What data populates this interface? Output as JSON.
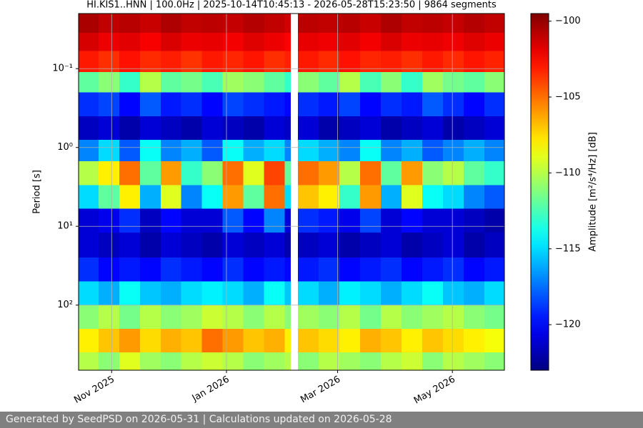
{
  "chart_data": {
    "type": "heatmap",
    "title": "HI.KIS1..HNN | 100.0Hz | 2025-10-14T10:45:13 - 2026-05-28T15:23:50 | 9864 segments",
    "y_label": "Period [s]",
    "colorbar_label": "Amplitude [m²/s⁴/Hz] [dB]",
    "footer": "Generated by SeedPSD on 2026-05-31 | Calculations updated on 2026-05-28",
    "x_edges": [
      "2025-10-14T10:45:13",
      "2025-10-25",
      "2025-11-05",
      "2025-11-16",
      "2025-11-27",
      "2025-12-08",
      "2025-12-19",
      "2025-12-30",
      "2026-01-10",
      "2026-01-21",
      "2026-02-01",
      "2026-02-04",
      "2026-02-08",
      "2026-02-19",
      "2026-03-02",
      "2026-03-13",
      "2026-03-24",
      "2026-04-04",
      "2026-04-15",
      "2026-04-26",
      "2026-05-07",
      "2026-05-18",
      "2026-05-28T15:23:50"
    ],
    "y_edges": [
      0.02,
      0.035,
      0.06,
      0.11,
      0.2,
      0.4,
      0.8,
      1.5,
      3,
      6,
      12,
      25,
      50,
      100,
      200,
      400,
      670
    ],
    "values": [
      [
        -100.5,
        -101,
        -100.8,
        -101.2,
        -100.6,
        -101,
        -100.9,
        -101.1,
        -100.7,
        -101,
        -101.3,
        null,
        -100.9,
        -101,
        -100.8,
        -101.2,
        -100.6,
        -101,
        -100.9,
        -101.1,
        -100.7,
        -101
      ],
      [
        -101.5,
        -102,
        -101.8,
        -102.3,
        -101.6,
        -102,
        -101.9,
        -102.2,
        -101.7,
        -102,
        -102.4,
        null,
        -101.9,
        -102.1,
        -101.8,
        -102.2,
        -101.6,
        -102,
        -101.9,
        -102.1,
        -101.7,
        -102
      ],
      [
        -103,
        -103.5,
        -102.8,
        -103.4,
        -103.1,
        -103.6,
        -103,
        -103.3,
        -102.9,
        -103.5,
        -103.2,
        null,
        -103,
        -103.4,
        -102.8,
        -103.3,
        -103.1,
        -103.5,
        -103,
        -103.4,
        -102.9,
        -103.2
      ],
      [
        -112,
        -111,
        -113,
        -110,
        -112,
        -111.5,
        -112.5,
        -110.5,
        -111,
        -112,
        -113,
        null,
        -111,
        -112,
        -110,
        -112.5,
        -111,
        -113,
        -110.5,
        -111.5,
        -112,
        -111
      ],
      [
        -119,
        -118.5,
        -120,
        -118,
        -119.5,
        -119,
        -120,
        -118.5,
        -119,
        -119.5,
        -120,
        null,
        -119,
        -119.5,
        -118.5,
        -120,
        -119,
        -119.5,
        -118,
        -119,
        -120,
        -119
      ],
      [
        -121.5,
        -121,
        -122,
        -121,
        -121.5,
        -122,
        -121,
        -121.5,
        -122,
        -121,
        -121.5,
        null,
        -121,
        -122,
        -121.5,
        -121,
        -122,
        -121.5,
        -121,
        -122,
        -121.5,
        -121
      ],
      [
        -117,
        -115,
        -118,
        -114,
        -117,
        -116,
        -118,
        -114,
        -116,
        -115,
        -117,
        null,
        -115,
        -116,
        -117,
        -114,
        -117,
        -116,
        -118,
        -117,
        -116,
        -117
      ],
      [
        -110,
        -108,
        -105,
        -112,
        -106,
        -113,
        -111,
        -105,
        -109,
        -104,
        -112,
        null,
        -105,
        -106,
        -110,
        -105,
        -112,
        -106,
        -111,
        -110,
        -112,
        -113
      ],
      [
        -115,
        -112,
        -108,
        -116,
        -109,
        -117,
        -114,
        -106,
        -112,
        -105,
        -115,
        null,
        -107,
        -108,
        -113,
        -106,
        -116,
        -109,
        -114,
        -115,
        -117,
        -118
      ],
      [
        -121,
        -120.5,
        -119,
        -121.5,
        -120,
        -121,
        -121,
        -118,
        -120,
        -117,
        -121,
        null,
        -119,
        -119.5,
        -120.5,
        -118.5,
        -121,
        -120,
        -121,
        -121,
        -121.5,
        -122
      ],
      [
        -121,
        -121.5,
        -121,
        -122,
        -121,
        -121.5,
        -122,
        -121,
        -121.5,
        -121,
        -122,
        null,
        -121.5,
        -121,
        -122,
        -121.5,
        -121,
        -122,
        -121.5,
        -121,
        -122,
        -121.5
      ],
      [
        -119,
        -120,
        -119.5,
        -120,
        -119,
        -119.5,
        -120,
        -119,
        -120,
        -119.5,
        -120,
        null,
        -119.5,
        -119,
        -120,
        -119.5,
        -119,
        -120,
        -119.5,
        -119,
        -120,
        -119.5
      ],
      [
        -115,
        -116,
        -114,
        -115.5,
        -116,
        -115,
        -114.5,
        -115,
        -116,
        -114,
        -115.5,
        null,
        -115,
        -116,
        -114.5,
        -115,
        -116,
        -115,
        -114,
        -115.5,
        -116,
        -115
      ],
      [
        -111,
        -110,
        -111.5,
        -110,
        -111,
        -110.5,
        -109.5,
        -110,
        -111,
        -110,
        -111,
        null,
        -110.5,
        -111,
        -110,
        -111.5,
        -110,
        -111,
        -110.5,
        -110,
        -111,
        -111.5
      ],
      [
        -108,
        -107,
        -106,
        -107.5,
        -106.5,
        -107,
        -105,
        -106,
        -107,
        -106.5,
        -108,
        null,
        -107,
        -107.5,
        -108,
        -106.5,
        -107,
        -108,
        -107,
        -107.5,
        -108,
        -108.5
      ],
      [
        -110,
        -111,
        -109,
        -110.5,
        -111,
        -110,
        -109.5,
        -110,
        -111,
        -110.5,
        -110,
        null,
        -111,
        -110,
        -110.5,
        -111,
        -110,
        -109.5,
        -111,
        -110,
        -110.5,
        -111
      ]
    ],
    "xlim": [
      "2025-10-14T10:45:13",
      "2026-05-28T15:23:50"
    ],
    "xticks": [
      {
        "value": "2025-11-01",
        "label": "Nov 2025"
      },
      {
        "value": "2026-01-01",
        "label": "Jan 2026"
      },
      {
        "value": "2026-03-01",
        "label": "Mar 2026"
      },
      {
        "value": "2026-05-01",
        "label": "May 2026"
      }
    ],
    "ylim": [
      0.02,
      670
    ],
    "ylog": true,
    "y_inverted": true,
    "yticks": [
      {
        "value": 0.1,
        "label": "10⁻¹"
      },
      {
        "value": 1,
        "label": "10⁰"
      },
      {
        "value": 10,
        "label": "10¹"
      },
      {
        "value": 100,
        "label": "10²"
      }
    ],
    "colormap": "jet",
    "clim": [
      -123,
      -99.5
    ],
    "cticks": [
      {
        "value": -100,
        "label": "−100"
      },
      {
        "value": -105,
        "label": "−105"
      },
      {
        "value": -110,
        "label": "−110"
      },
      {
        "value": -115,
        "label": "−115"
      },
      {
        "value": -120,
        "label": "−120"
      }
    ],
    "grid": true
  }
}
